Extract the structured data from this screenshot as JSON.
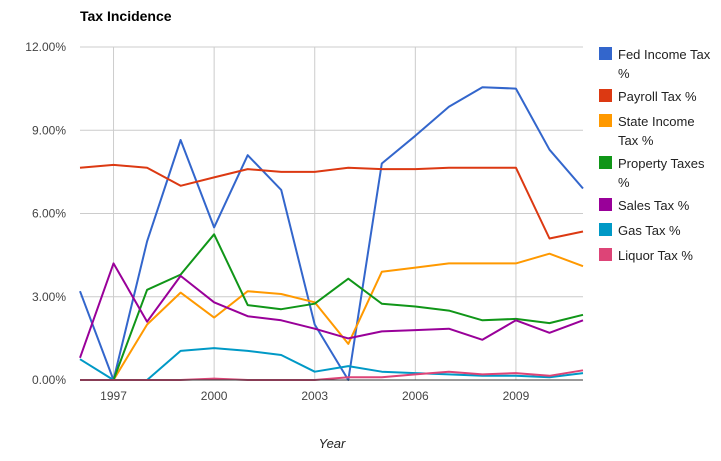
{
  "chart_data": {
    "type": "line",
    "title": "Tax Incidence",
    "xlabel": "Year",
    "ylabel": "",
    "xlim": [
      1996,
      2011
    ],
    "ylim": [
      0,
      12
    ],
    "x_ticks": [
      1997,
      2000,
      2003,
      2006,
      2009
    ],
    "x_tick_labels": [
      "1997",
      "2000",
      "2003",
      "2006",
      "2009"
    ],
    "y_ticks": [
      0,
      3,
      6,
      9,
      12
    ],
    "y_tick_labels": [
      "0.00%",
      "3.00%",
      "6.00%",
      "9.00%",
      "12.00%"
    ],
    "grid": true,
    "legend_position": "right",
    "x": [
      1996,
      1997,
      1998,
      1999,
      2000,
      2001,
      2002,
      2003,
      2004,
      2005,
      2006,
      2007,
      2008,
      2009,
      2010,
      2011
    ],
    "series": [
      {
        "name": "Fed Income Tax %",
        "legend_lines": [
          "Fed Income Tax",
          "%"
        ],
        "color": "#3366cc",
        "values": [
          3.2,
          0.0,
          5.0,
          8.65,
          5.5,
          8.1,
          6.85,
          2.0,
          0.0,
          7.8,
          8.8,
          9.85,
          10.55,
          10.5,
          8.3,
          6.9
        ]
      },
      {
        "name": "Payroll Tax %",
        "legend_lines": [
          "Payroll Tax %"
        ],
        "color": "#dc3912",
        "values": [
          7.65,
          7.75,
          7.65,
          7.0,
          7.3,
          7.6,
          7.5,
          7.5,
          7.65,
          7.6,
          7.6,
          7.65,
          7.65,
          7.65,
          5.1,
          5.35
        ]
      },
      {
        "name": "State Income Tax %",
        "legend_lines": [
          "State Income",
          "Tax %"
        ],
        "color": "#ff9900",
        "values": [
          0.0,
          0.0,
          2.0,
          3.15,
          2.25,
          3.2,
          3.1,
          2.8,
          1.3,
          3.9,
          4.05,
          4.2,
          4.2,
          4.2,
          4.55,
          4.1
        ]
      },
      {
        "name": "Property Taxes %",
        "legend_lines": [
          "Property Taxes",
          "%"
        ],
        "color": "#109618",
        "values": [
          0.0,
          0.0,
          3.25,
          3.8,
          5.25,
          2.7,
          2.55,
          2.75,
          3.65,
          2.75,
          2.65,
          2.5,
          2.15,
          2.2,
          2.05,
          2.35
        ]
      },
      {
        "name": "Sales Tax %",
        "legend_lines": [
          "Sales Tax %"
        ],
        "color": "#990099",
        "values": [
          0.8,
          4.2,
          2.1,
          3.75,
          2.8,
          2.3,
          2.15,
          1.85,
          1.5,
          1.75,
          1.8,
          1.85,
          1.45,
          2.15,
          1.7,
          2.15
        ]
      },
      {
        "name": "Gas Tax %",
        "legend_lines": [
          "Gas Tax %"
        ],
        "color": "#0099c6",
        "values": [
          0.75,
          0.0,
          0.0,
          1.05,
          1.15,
          1.05,
          0.9,
          0.3,
          0.5,
          0.3,
          0.25,
          0.2,
          0.15,
          0.15,
          0.1,
          0.25
        ]
      },
      {
        "name": "Liquor Tax %",
        "legend_lines": [
          "Liquor Tax %"
        ],
        "color": "#dd4477",
        "values": [
          0.0,
          0.0,
          0.0,
          0.0,
          0.05,
          0.0,
          0.0,
          0.0,
          0.1,
          0.1,
          0.2,
          0.3,
          0.2,
          0.25,
          0.15,
          0.35
        ]
      }
    ]
  }
}
